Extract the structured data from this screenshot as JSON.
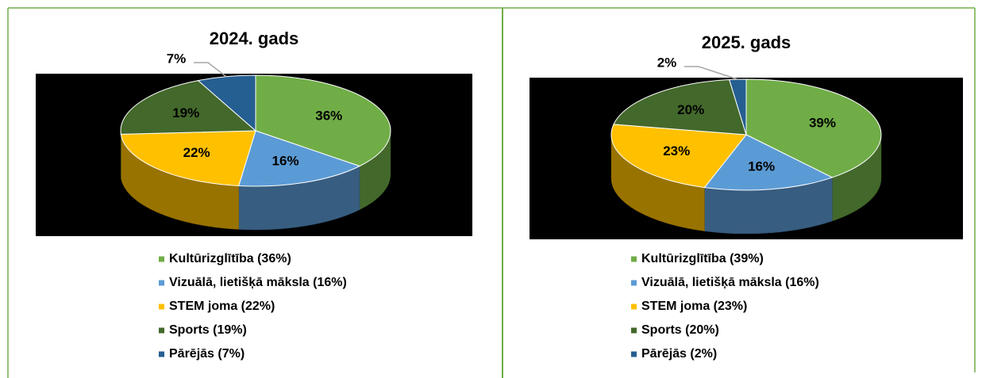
{
  "chart_data": [
    {
      "type": "pie3d",
      "title": "2024. gads",
      "categories": [
        "Kultūrizglītība (36%)",
        "Vizuālā, lietišķā māksla (16%)",
        "STEM joma (22%)",
        "Sports (19%)",
        "Pārējās (7%)"
      ],
      "values": [
        36,
        16,
        22,
        19,
        7
      ],
      "value_labels": [
        "36%",
        "16%",
        "22%",
        "19%",
        "7%"
      ],
      "colors": [
        "#70ad47",
        "#5b9bd5",
        "#ffc000",
        "#43682b",
        "#255e91"
      ]
    },
    {
      "type": "pie3d",
      "title": "2025. gads",
      "categories": [
        "Kultūrizglītība (39%)",
        "Vizuālā, lietišķā māksla (16%)",
        "STEM joma (23%)",
        "Sports (20%)",
        "Pārējās (2%)"
      ],
      "values": [
        39,
        16,
        23,
        20,
        2
      ],
      "value_labels": [
        "39%",
        "16%",
        "23%",
        "20%",
        "2%"
      ],
      "colors": [
        "#70ad47",
        "#5b9bd5",
        "#ffc000",
        "#43682b",
        "#255e91"
      ]
    }
  ]
}
